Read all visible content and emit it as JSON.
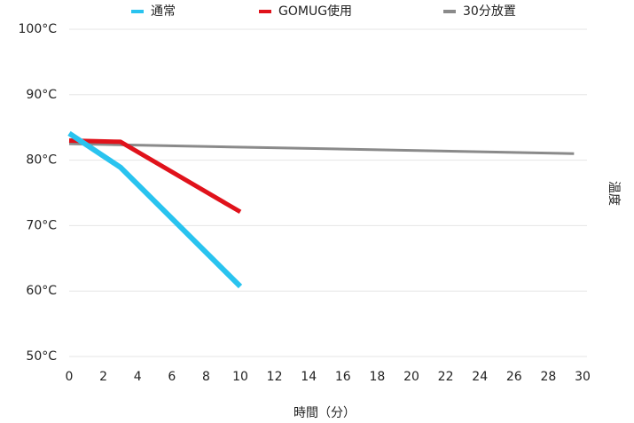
{
  "chart_data": {
    "type": "line",
    "x_label": "時間（分）",
    "y_label": "温度",
    "xlim": [
      0,
      30
    ],
    "xticks": [
      0,
      2,
      4,
      6,
      8,
      10,
      12,
      14,
      16,
      18,
      20,
      22,
      24,
      26,
      28,
      30
    ],
    "ylim": [
      50,
      100
    ],
    "yticks": [
      {
        "value": 50,
        "label": "50°C"
      },
      {
        "value": 60,
        "label": "60°C"
      },
      {
        "value": 70,
        "label": "70°C"
      },
      {
        "value": 80,
        "label": "80°C"
      },
      {
        "value": 90,
        "label": "90°C"
      },
      {
        "value": 100,
        "label": "100°C"
      }
    ],
    "grid": true,
    "legend": "top",
    "series": [
      {
        "name": "通常",
        "color": "#29c3ef",
        "width": 6,
        "x": [
          0,
          3,
          10
        ],
        "values": [
          84.1,
          78.9,
          60.7
        ]
      },
      {
        "name": "GOMUG使用",
        "color": "#e0121b",
        "width": 5,
        "x": [
          0,
          3,
          10
        ],
        "values": [
          83,
          82.8,
          72.1
        ]
      },
      {
        "name": "30分放置",
        "color": "#8a8a8a",
        "width": 3,
        "x": [
          0,
          29.5
        ],
        "values": [
          82.5,
          81
        ]
      }
    ]
  }
}
